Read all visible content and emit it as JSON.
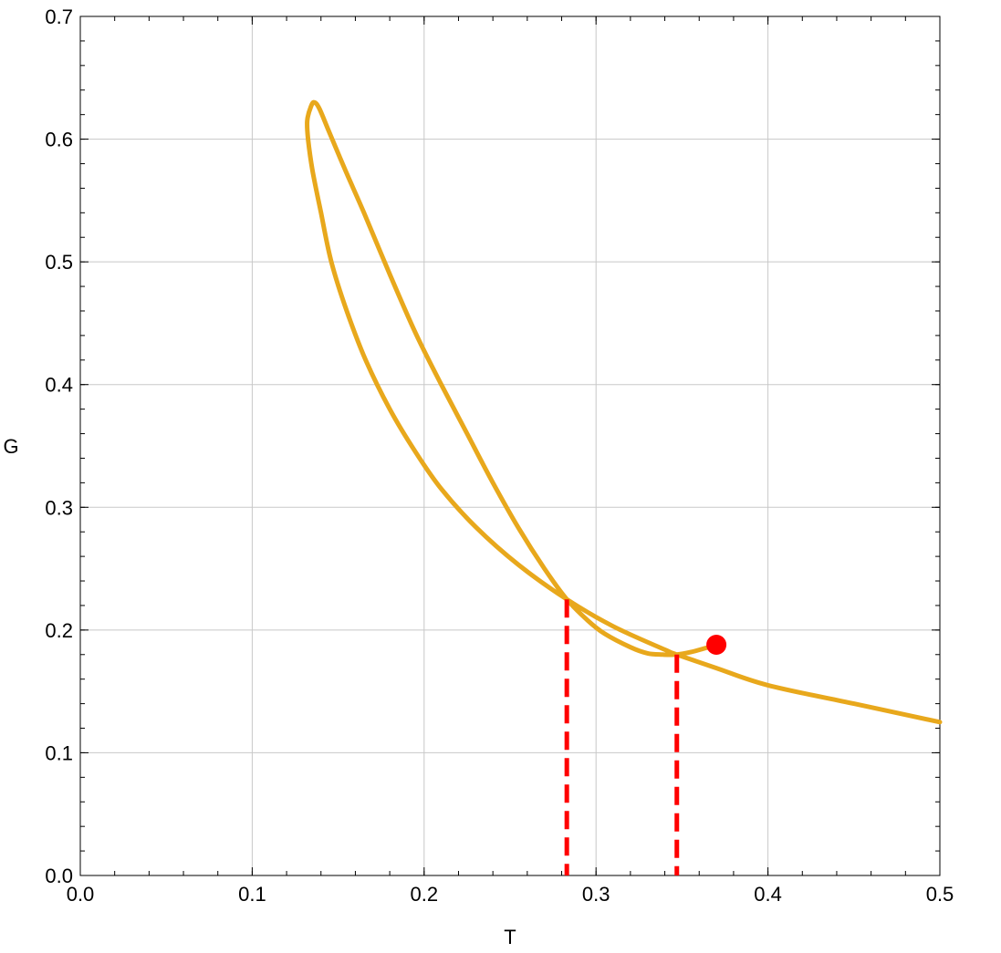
{
  "chart_data": {
    "type": "line",
    "title": "",
    "xlabel": "T",
    "ylabel": "G",
    "xlim": [
      0.0,
      0.5
    ],
    "ylim": [
      0.0,
      0.7
    ],
    "grid": true,
    "x_ticks": [
      "0.0",
      "0.1",
      "0.2",
      "0.3",
      "0.4",
      "0.5"
    ],
    "y_ticks": [
      "0.0",
      "0.1",
      "0.2",
      "0.3",
      "0.4",
      "0.5",
      "0.6",
      "0.7"
    ],
    "curve_color": "#E8A81C",
    "marker_color": "#FF0000",
    "series": [
      {
        "points": [
          [
            0.37,
            0.188
          ],
          [
            0.363,
            0.185
          ],
          [
            0.355,
            0.182
          ],
          [
            0.347,
            0.18
          ],
          [
            0.339,
            0.18
          ],
          [
            0.33,
            0.181
          ],
          [
            0.32,
            0.186
          ],
          [
            0.305,
            0.197
          ],
          [
            0.295,
            0.208
          ],
          [
            0.283,
            0.225
          ],
          [
            0.27,
            0.25
          ],
          [
            0.255,
            0.283
          ],
          [
            0.24,
            0.32
          ],
          [
            0.225,
            0.36
          ],
          [
            0.21,
            0.4
          ],
          [
            0.195,
            0.442
          ],
          [
            0.18,
            0.49
          ],
          [
            0.165,
            0.54
          ],
          [
            0.155,
            0.572
          ],
          [
            0.145,
            0.605
          ],
          [
            0.139,
            0.625
          ],
          [
            0.136,
            0.63
          ],
          [
            0.134,
            0.626
          ],
          [
            0.132,
            0.615
          ],
          [
            0.1325,
            0.6
          ],
          [
            0.135,
            0.575
          ],
          [
            0.14,
            0.54
          ],
          [
            0.146,
            0.5
          ],
          [
            0.155,
            0.46
          ],
          [
            0.166,
            0.42
          ],
          [
            0.18,
            0.38
          ],
          [
            0.195,
            0.345
          ],
          [
            0.21,
            0.315
          ],
          [
            0.23,
            0.284
          ],
          [
            0.255,
            0.253
          ],
          [
            0.283,
            0.225
          ],
          [
            0.31,
            0.203
          ],
          [
            0.34,
            0.184
          ],
          [
            0.347,
            0.18
          ],
          [
            0.37,
            0.169
          ],
          [
            0.4,
            0.155
          ],
          [
            0.45,
            0.14
          ],
          [
            0.5,
            0.125
          ]
        ]
      }
    ],
    "critical_point": [
      0.37,
      0.188
    ],
    "transition_lines": [
      {
        "x": 0.283,
        "y_top": 0.225
      },
      {
        "x": 0.347,
        "y_top": 0.18
      }
    ]
  }
}
